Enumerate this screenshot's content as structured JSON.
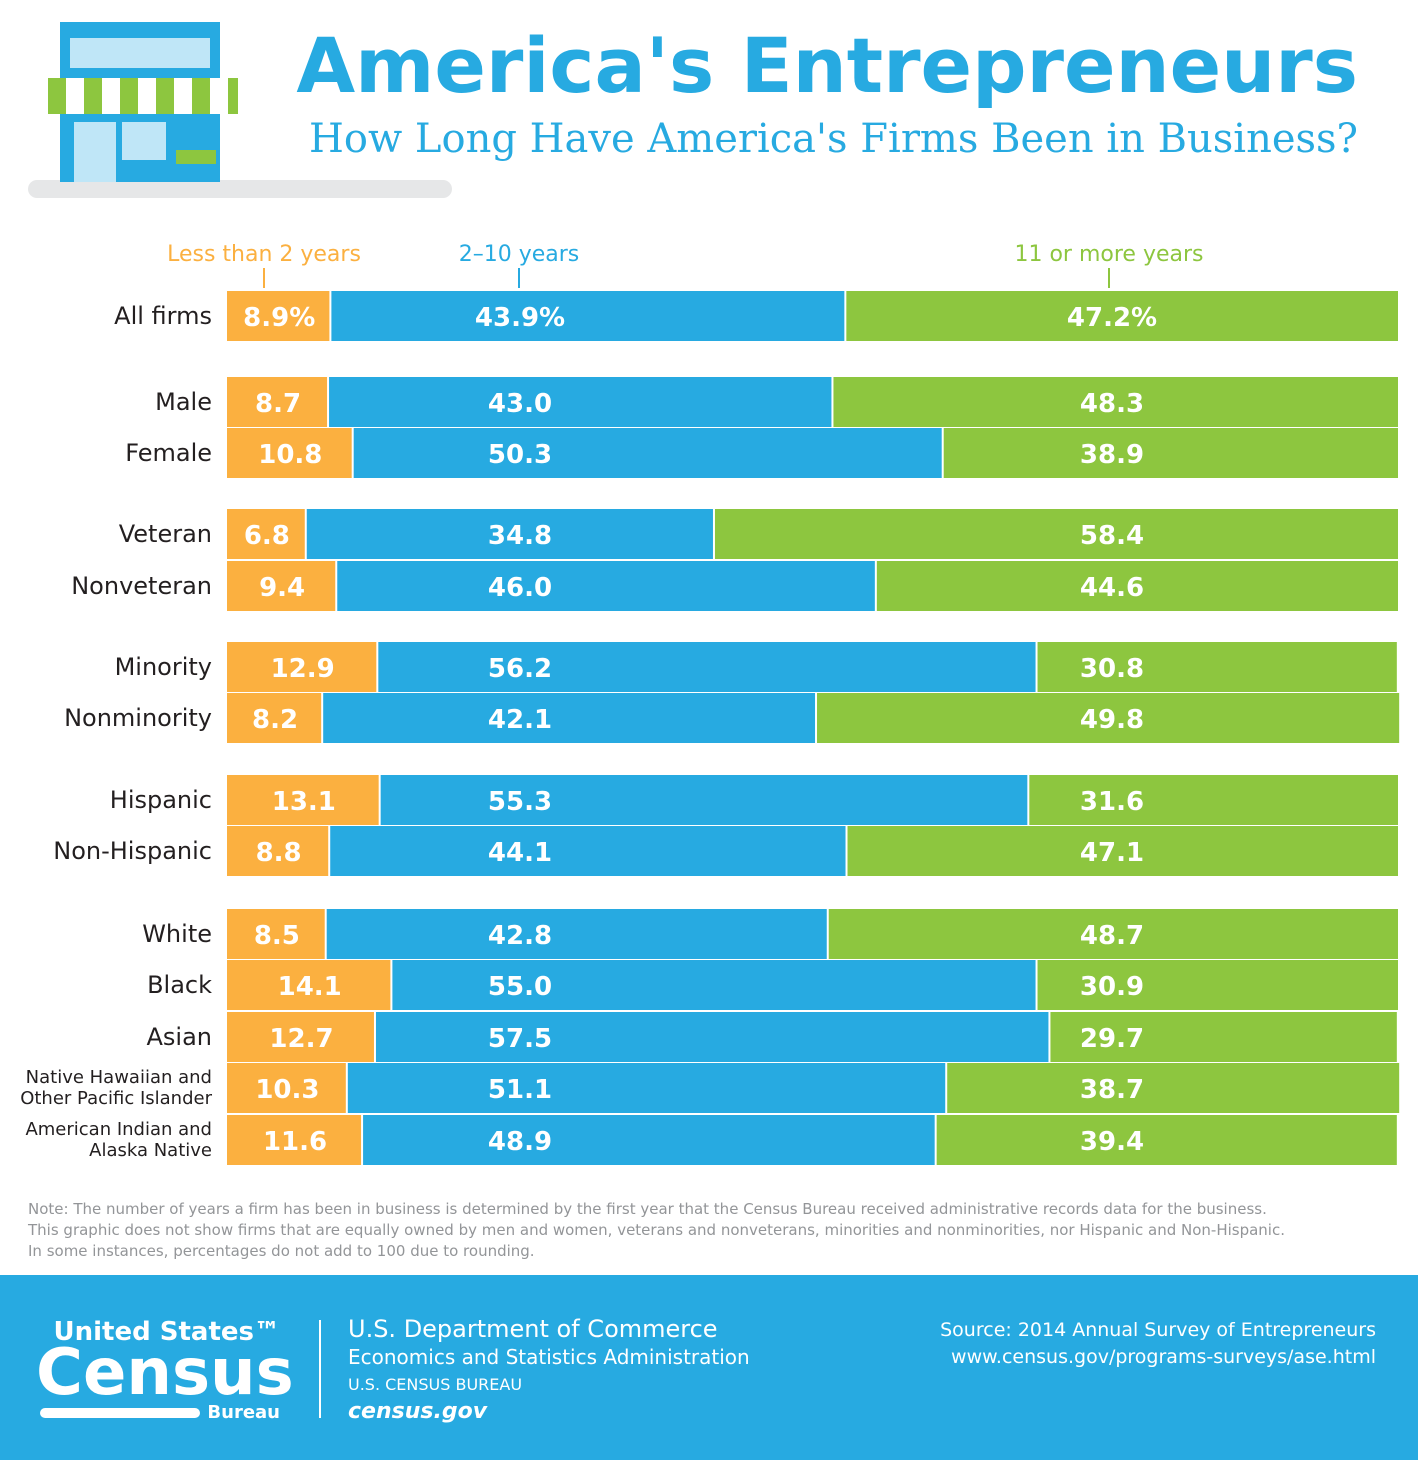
{
  "chart_data": {
    "type": "stacked_bar",
    "orientation": "horizontal",
    "title": "America's Entrepreneurs",
    "subtitle": "How Long Have America's Firms Been in Business?",
    "categories": [
      "All firms",
      "Male",
      "Female",
      "Veteran",
      "Nonveteran",
      "Minority",
      "Nonminority",
      "Hispanic",
      "Non-Hispanic",
      "White",
      "Black",
      "Asian",
      "Native Hawaiian and Other Pacific Islander",
      "American Indian and Alaska Native"
    ],
    "xlim": [
      0,
      100
    ],
    "series": [
      {
        "name": "Less than 2 years",
        "color": "#fbb040",
        "values": [
          8.9,
          8.7,
          10.8,
          6.8,
          9.4,
          12.9,
          8.2,
          13.1,
          8.8,
          8.5,
          14.1,
          12.7,
          10.3,
          11.6
        ],
        "value_labels": [
          "8.9%",
          "8.7",
          "10.8",
          "6.8",
          "9.4",
          "12.9",
          "8.2",
          "13.1",
          "8.8",
          "8.5",
          "14.1",
          "12.7",
          "10.3",
          "11.6"
        ]
      },
      {
        "name": "2–10 years",
        "color": "#27aae1",
        "values": [
          43.9,
          43.0,
          50.3,
          34.8,
          46.0,
          56.2,
          42.1,
          55.3,
          44.1,
          42.8,
          55.0,
          57.5,
          51.1,
          48.9
        ],
        "value_labels": [
          "43.9%",
          "43.0",
          "50.3",
          "34.8",
          "46.0",
          "56.2",
          "42.1",
          "55.3",
          "44.1",
          "42.8",
          "55.0",
          "57.5",
          "51.1",
          "48.9"
        ]
      },
      {
        "name": "11 or more years",
        "color": "#8dc63f",
        "values": [
          47.2,
          48.3,
          38.9,
          58.4,
          44.6,
          30.8,
          49.8,
          31.6,
          47.1,
          48.7,
          30.9,
          29.7,
          38.7,
          39.4
        ],
        "value_labels": [
          "47.2%",
          "48.3",
          "38.9",
          "58.4",
          "44.6",
          "30.8",
          "49.8",
          "31.6",
          "47.1",
          "48.7",
          "30.9",
          "29.7",
          "38.7",
          "39.4"
        ]
      }
    ]
  },
  "note": [
    "Note: The number of years a firm has been in business is determined by the first year that the Census Bureau received administrative records data for the business.",
    "This graphic does not show firms that are equally owned by men and women, veterans and nonveterans, minorities and nonminorities, nor Hispanic and Non-Hispanic.",
    "In some instances, percentages do not add to 100 due to rounding."
  ],
  "footer": {
    "logo_top": "United States™",
    "logo_main": "Census",
    "logo_bottom": "Bureau",
    "department": "U.S. Department of Commerce",
    "administration": "Economics and Statistics Administration",
    "bureau": "U.S. CENSUS BUREAU",
    "website": "census.gov",
    "source": "Source: 2014 Annual Survey of Entrepreneurs",
    "url": "www.census.gov/programs-surveys/ase.html"
  }
}
